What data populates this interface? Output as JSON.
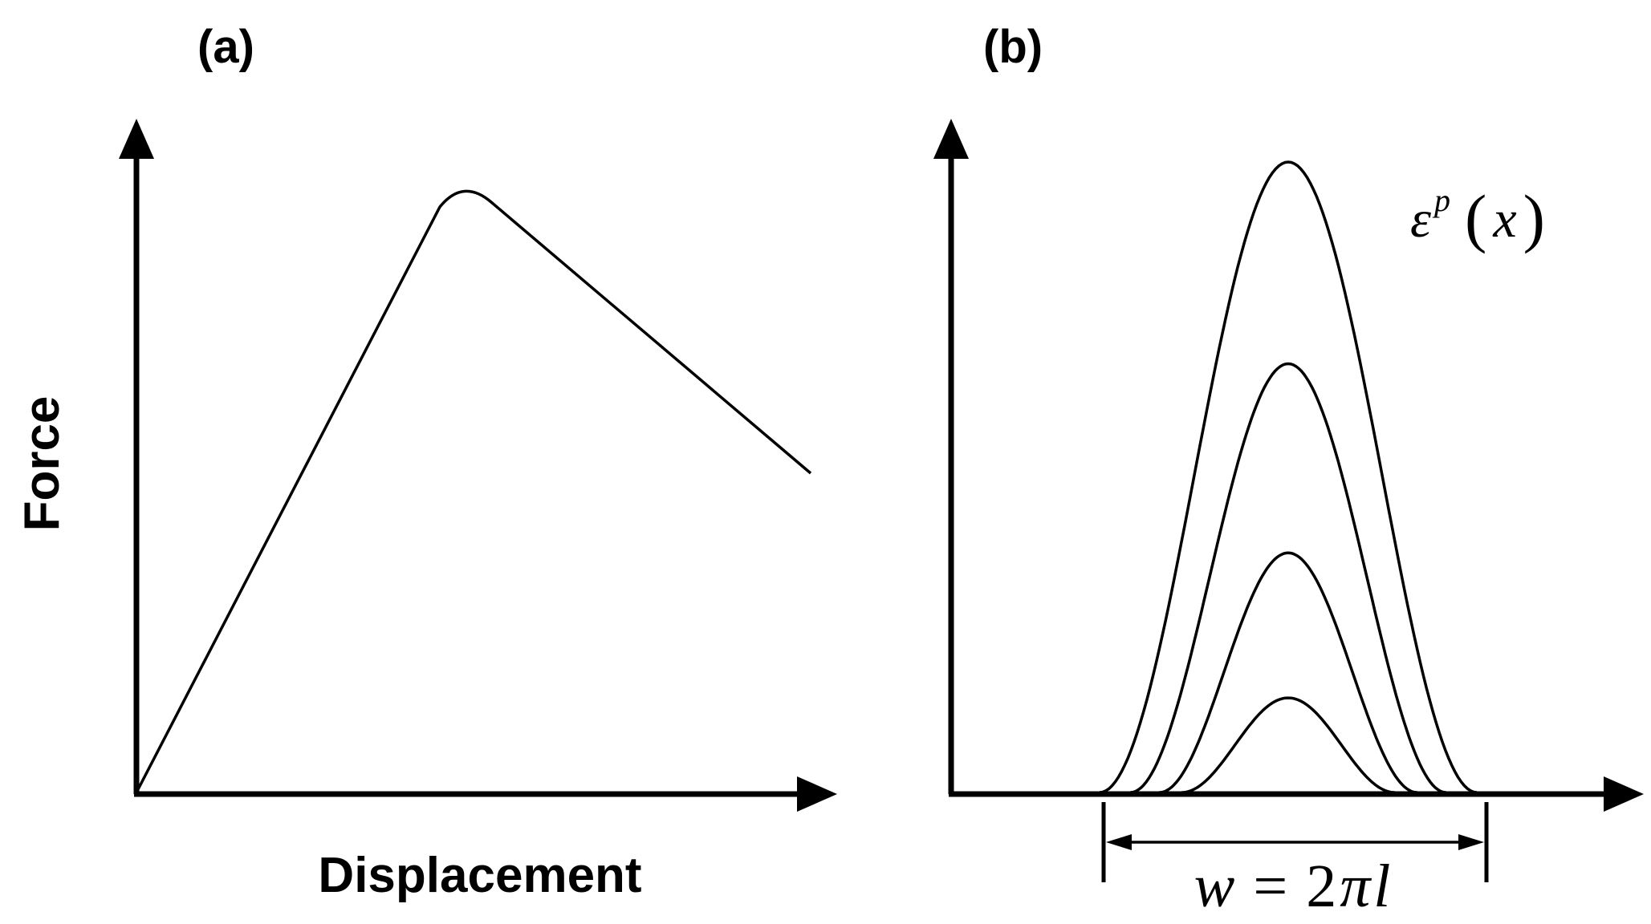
{
  "panel_a": {
    "label": "(a)",
    "x_axis_label": "Displacement",
    "y_axis_label": "Force"
  },
  "panel_b": {
    "label": "(b)",
    "curve_label": {
      "symbol": "ε",
      "superscript": "p",
      "open_paren": "(",
      "argument": "x",
      "close_paren": ")"
    },
    "width_label": {
      "lhs": "w",
      "equals": " = ",
      "coefficient": "2",
      "pi": "π",
      "var": "l"
    },
    "curve_relative_heights": [
      1.0,
      0.68,
      0.38,
      0.15
    ]
  }
}
